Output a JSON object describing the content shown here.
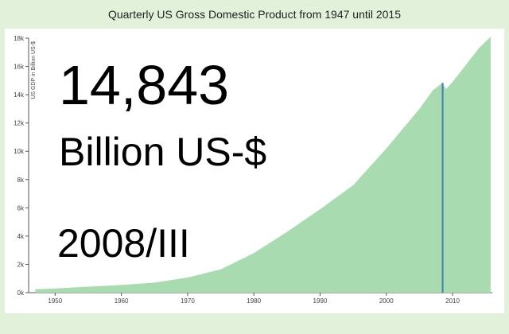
{
  "title": "Quarterly US Gross Domestic Product from 1947 until 2015",
  "colors": {
    "area": "#a8dbb0",
    "marker": "#3a7fb8",
    "axis": "#555555",
    "background": "#e2f2da"
  },
  "readout": {
    "value": "14,843",
    "unit": "Billion US-$",
    "period": "2008/III"
  },
  "chart_data": {
    "type": "area",
    "title": "Quarterly US Gross Domestic Product from 1947 until 2015",
    "xlabel": "",
    "ylabel": "US GDP in Billion US-$",
    "xlim": [
      1946,
      2016
    ],
    "ylim": [
      0,
      18000
    ],
    "y_ticks": [
      0,
      2000,
      4000,
      6000,
      8000,
      10000,
      12000,
      14000,
      16000,
      18000
    ],
    "y_tick_labels": [
      "0k",
      "2k",
      "4k",
      "6k",
      "8k",
      "10k",
      "12k",
      "14k",
      "16k",
      "18k"
    ],
    "x_ticks": [
      1950,
      1960,
      1970,
      1980,
      1990,
      2000,
      2010
    ],
    "x_tick_labels": [
      "1950",
      "1960",
      "1970",
      "1980",
      "1990",
      "2000",
      "2010"
    ],
    "grid": false,
    "highlight": {
      "x": 2008.5,
      "y": 14843,
      "label": "2008/III"
    },
    "x": [
      1947,
      1950,
      1955,
      1960,
      1965,
      1970,
      1975,
      1980,
      1985,
      1990,
      1995,
      2000,
      2005,
      2007,
      2008.5,
      2009,
      2010,
      2012,
      2014,
      2015.75
    ],
    "y": [
      240,
      300,
      420,
      540,
      710,
      1070,
      1640,
      2800,
      4300,
      5900,
      7600,
      10200,
      13000,
      14300,
      14843,
      14400,
      14900,
      16100,
      17300,
      18100
    ]
  }
}
